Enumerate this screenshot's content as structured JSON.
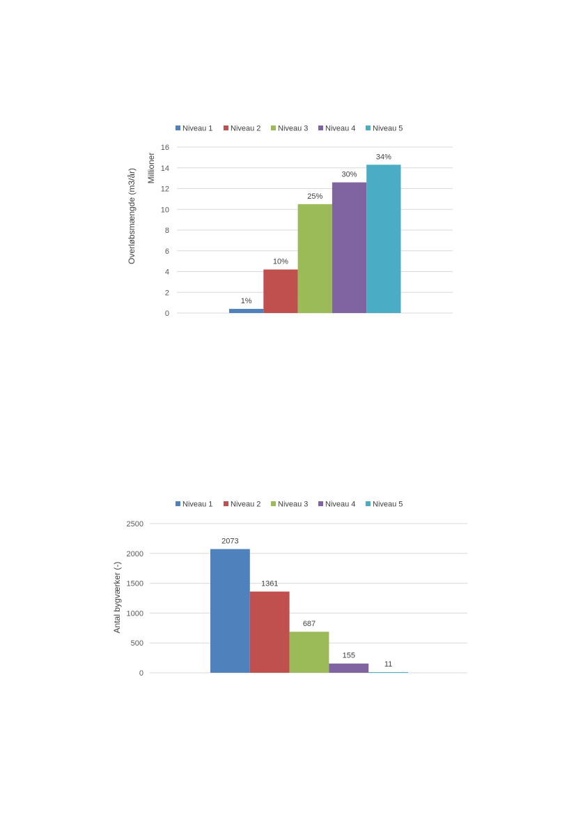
{
  "chart_data": [
    {
      "type": "bar",
      "categories": [
        ""
      ],
      "series": [
        {
          "name": "Niveau 1",
          "values": [
            0.4
          ],
          "label": "1%",
          "color": "#4f81bd"
        },
        {
          "name": "Niveau 2",
          "values": [
            4.2
          ],
          "label": "10%",
          "color": "#c0504d"
        },
        {
          "name": "Niveau 3",
          "values": [
            10.5
          ],
          "label": "25%",
          "color": "#9bbb59"
        },
        {
          "name": "Niveau 4",
          "values": [
            12.6
          ],
          "label": "30%",
          "color": "#8064a2"
        },
        {
          "name": "Niveau 5",
          "values": [
            14.3
          ],
          "label": "34%",
          "color": "#4bacc6"
        }
      ],
      "yticks": [
        "0",
        "2",
        "4",
        "6",
        "8",
        "10",
        "12",
        "14",
        "16"
      ],
      "ylim": [
        0,
        16
      ],
      "ylabel": "Overløbsmængde (m3/år)",
      "yunit_label": "Millioner",
      "xlabel": "",
      "title": "",
      "legend": "top",
      "grid": true
    },
    {
      "type": "bar",
      "categories": [
        ""
      ],
      "series": [
        {
          "name": "Niveau 1",
          "values": [
            2073
          ],
          "label": "2073",
          "color": "#4f81bd"
        },
        {
          "name": "Niveau 2",
          "values": [
            1361
          ],
          "label": "1361",
          "color": "#c0504d"
        },
        {
          "name": "Niveau 3",
          "values": [
            687
          ],
          "label": "687",
          "color": "#9bbb59"
        },
        {
          "name": "Niveau 4",
          "values": [
            155
          ],
          "label": "155",
          "color": "#8064a2"
        },
        {
          "name": "Niveau 5",
          "values": [
            11
          ],
          "label": "11",
          "color": "#4bacc6"
        }
      ],
      "yticks": [
        "0",
        "500",
        "1000",
        "1500",
        "2000",
        "2500"
      ],
      "ylim": [
        0,
        2500
      ],
      "ylabel": "Antal bygværker (-)",
      "xlabel": "",
      "title": "",
      "legend": "top",
      "grid": true
    }
  ]
}
